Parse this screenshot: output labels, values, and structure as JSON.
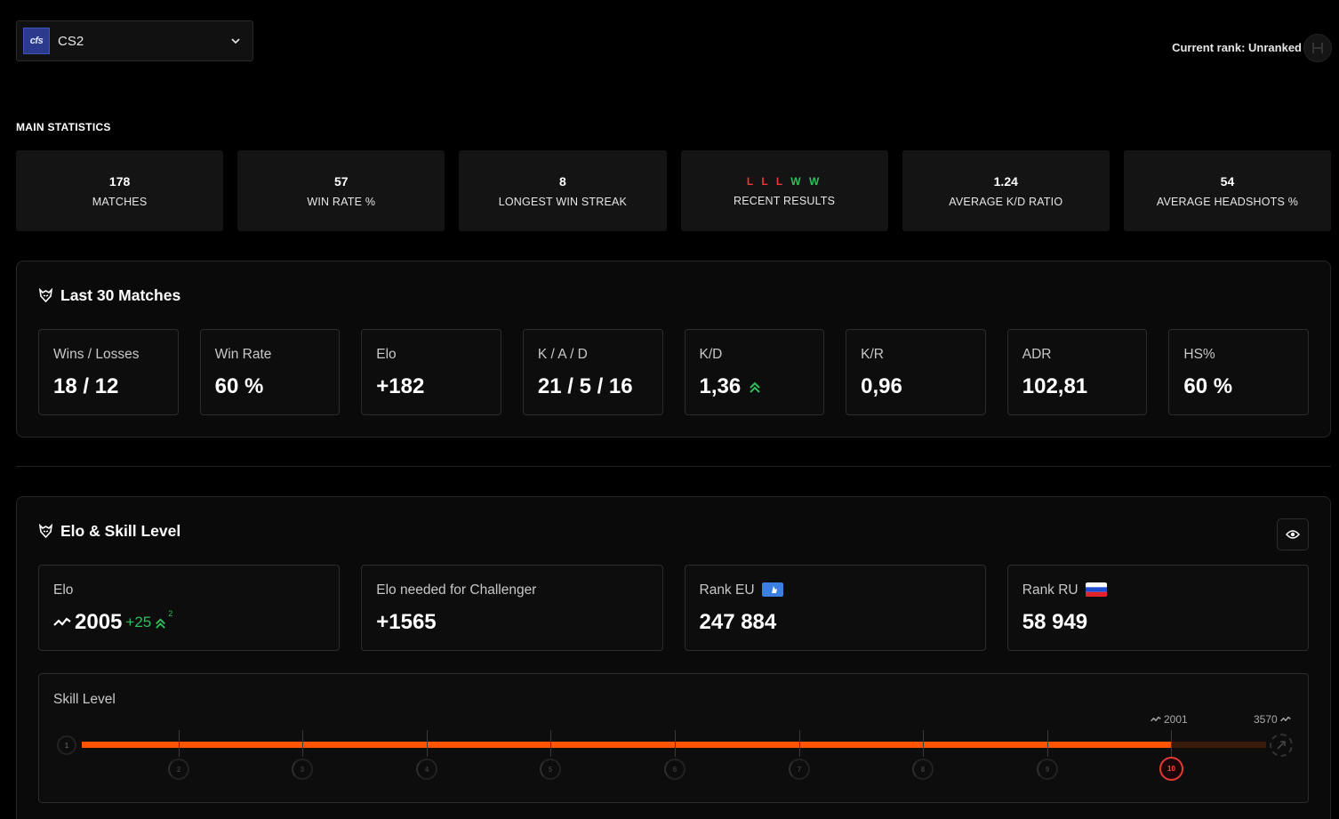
{
  "header": {
    "game_logo_text": "cfs",
    "game_name": "CS2",
    "current_rank": "Current rank: Unranked"
  },
  "main_statistics": {
    "title": "MAIN STATISTICS",
    "cards": [
      {
        "value": "178",
        "label": "MATCHES"
      },
      {
        "value": "57",
        "label": "WIN RATE %"
      },
      {
        "value": "8",
        "label": "LONGEST WIN STREAK"
      },
      {
        "value": "",
        "label": "RECENT RESULTS"
      },
      {
        "value": "1.24",
        "label": "AVERAGE K/D RATIO"
      },
      {
        "value": "54",
        "label": "AVERAGE HEADSHOTS %"
      }
    ],
    "recent_results": [
      "L",
      "L",
      "L",
      "W",
      "W"
    ]
  },
  "last30": {
    "title": "Last 30 Matches",
    "cards": [
      {
        "label": "Wins / Losses",
        "value": "18 / 12"
      },
      {
        "label": "Win Rate",
        "value": "60 %"
      },
      {
        "label": "Elo",
        "value": "+182"
      },
      {
        "label": "K / A / D",
        "value": "21 / 5 / 16"
      },
      {
        "label": "K/D",
        "value": "1,36"
      },
      {
        "label": "K/R",
        "value": "0,96"
      },
      {
        "label": "ADR",
        "value": "102,81"
      },
      {
        "label": "HS%",
        "value": "60 %"
      }
    ]
  },
  "elo_skill": {
    "title": "Elo & Skill Level",
    "elo": {
      "label": "Elo",
      "value": "2005",
      "change": "+25",
      "change_sup": "2"
    },
    "challenger": {
      "label": "Elo needed for Challenger",
      "value": "+1565"
    },
    "rank_eu": {
      "label": "Rank EU",
      "value": "247 884"
    },
    "rank_ru": {
      "label": "Rank RU",
      "value": "58 949"
    },
    "skill": {
      "label": "Skill Level",
      "current_level": "10",
      "levels": [
        "1",
        "2",
        "3",
        "4",
        "5",
        "6",
        "7",
        "8",
        "9",
        "10"
      ],
      "current_elo_marker": "2001",
      "max_elo_marker": "3570",
      "progress_fraction": 0.92
    }
  },
  "colors": {
    "accent_orange": "#ff5500",
    "win_green": "#2fbf5b",
    "loss_red": "#e53935"
  }
}
